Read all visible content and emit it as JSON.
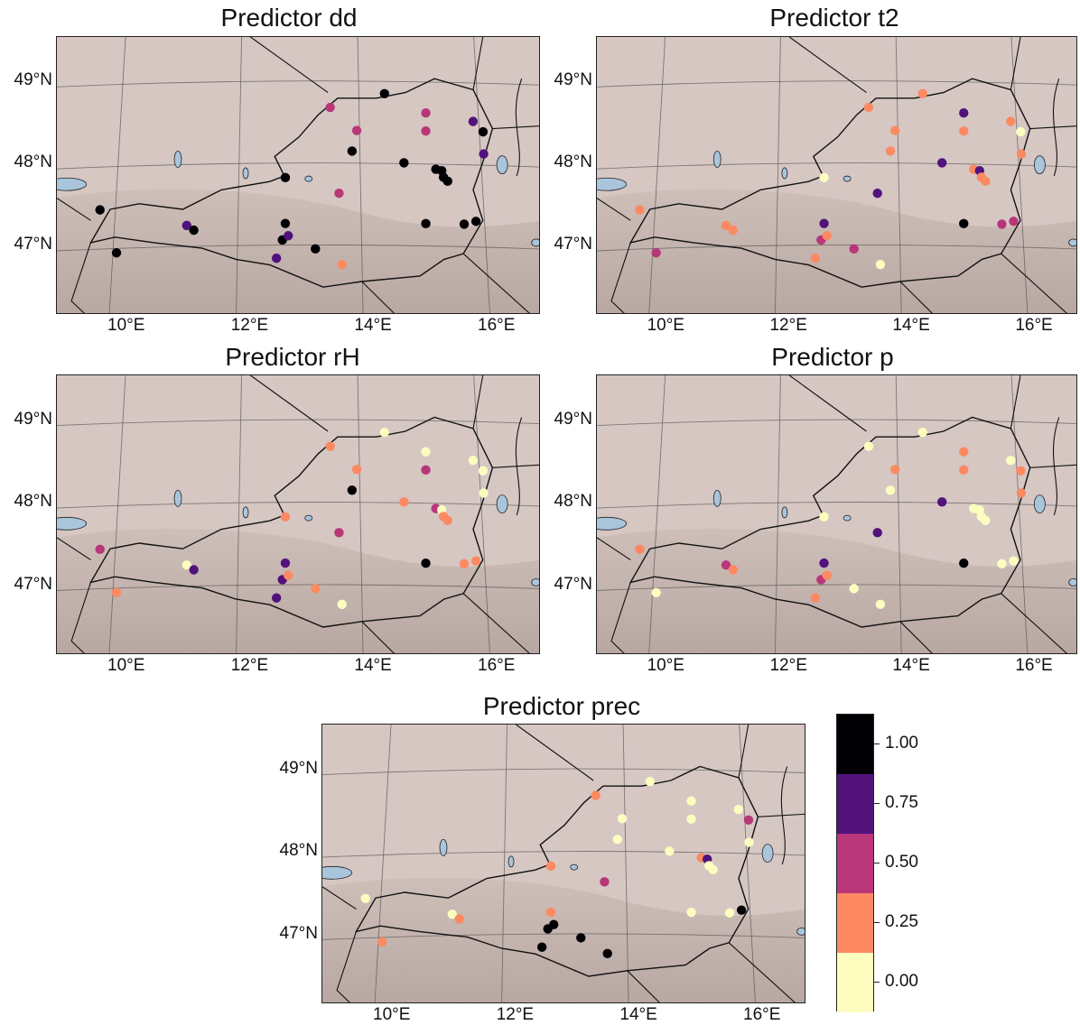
{
  "chart_data": [
    {
      "type": "scatter",
      "title": "Predictor dd",
      "xlabel": "",
      "ylabel": "",
      "xticks": [
        "10°E",
        "12°E",
        "14°E",
        "16°E"
      ],
      "yticks": [
        "49°N",
        "48°N",
        "47°N"
      ],
      "xlim": [
        8.9,
        17.2
      ],
      "ylim": [
        46.3,
        49.6
      ],
      "points": [
        {
          "lon": 9.73,
          "lat": 47.5,
          "value": 1.0
        },
        {
          "lon": 10.01,
          "lat": 46.97,
          "value": 1.0
        },
        {
          "lon": 11.2,
          "lat": 47.28,
          "value": 0.75
        },
        {
          "lon": 11.32,
          "lat": 47.22,
          "value": 1.0
        },
        {
          "lon": 12.72,
          "lat": 46.85,
          "value": 0.75
        },
        {
          "lon": 12.82,
          "lat": 47.07,
          "value": 1.0
        },
        {
          "lon": 12.87,
          "lat": 47.27,
          "value": 1.0
        },
        {
          "lon": 12.92,
          "lat": 47.12,
          "value": 0.75
        },
        {
          "lon": 12.87,
          "lat": 47.83,
          "value": 1.0
        },
        {
          "lon": 13.38,
          "lat": 46.95,
          "value": 1.0
        },
        {
          "lon": 13.63,
          "lat": 48.67,
          "value": 0.5
        },
        {
          "lon": 13.78,
          "lat": 47.62,
          "value": 0.5
        },
        {
          "lon": 13.83,
          "lat": 46.75,
          "value": 0.25
        },
        {
          "lon": 14.0,
          "lat": 48.13,
          "value": 1.0
        },
        {
          "lon": 14.08,
          "lat": 48.38,
          "value": 0.5
        },
        {
          "lon": 14.55,
          "lat": 48.82,
          "value": 1.0
        },
        {
          "lon": 14.88,
          "lat": 47.97,
          "value": 1.0
        },
        {
          "lon": 15.25,
          "lat": 48.57,
          "value": 0.5
        },
        {
          "lon": 15.25,
          "lat": 48.35,
          "value": 0.5
        },
        {
          "lon": 15.25,
          "lat": 47.22,
          "value": 1.0
        },
        {
          "lon": 15.42,
          "lat": 47.88,
          "value": 1.0
        },
        {
          "lon": 15.52,
          "lat": 47.86,
          "value": 1.0
        },
        {
          "lon": 15.55,
          "lat": 47.78,
          "value": 1.0
        },
        {
          "lon": 15.62,
          "lat": 47.73,
          "value": 1.0
        },
        {
          "lon": 15.9,
          "lat": 47.2,
          "value": 1.0
        },
        {
          "lon": 16.05,
          "lat": 48.45,
          "value": 0.75
        },
        {
          "lon": 16.1,
          "lat": 47.23,
          "value": 1.0
        },
        {
          "lon": 16.22,
          "lat": 48.32,
          "value": 1.0
        },
        {
          "lon": 16.23,
          "lat": 48.05,
          "value": 0.75
        }
      ]
    },
    {
      "type": "scatter",
      "title": "Predictor t2",
      "xlabel": "",
      "ylabel": "",
      "xticks": [
        "10°E",
        "12°E",
        "14°E",
        "16°E"
      ],
      "yticks": [
        "49°N",
        "48°N",
        "47°N"
      ],
      "xlim": [
        8.9,
        17.2
      ],
      "ylim": [
        46.3,
        49.6
      ],
      "points": [
        {
          "lon": 9.73,
          "lat": 47.5,
          "value": 0.25
        },
        {
          "lon": 10.01,
          "lat": 46.97,
          "value": 0.5
        },
        {
          "lon": 11.2,
          "lat": 47.28,
          "value": 0.25
        },
        {
          "lon": 11.32,
          "lat": 47.22,
          "value": 0.25
        },
        {
          "lon": 12.72,
          "lat": 46.85,
          "value": 0.25
        },
        {
          "lon": 12.82,
          "lat": 47.07,
          "value": 0.5
        },
        {
          "lon": 12.87,
          "lat": 47.27,
          "value": 0.75
        },
        {
          "lon": 12.92,
          "lat": 47.12,
          "value": 0.25
        },
        {
          "lon": 12.87,
          "lat": 47.83,
          "value": 0.0
        },
        {
          "lon": 13.38,
          "lat": 46.95,
          "value": 0.5
        },
        {
          "lon": 13.63,
          "lat": 48.67,
          "value": 0.25
        },
        {
          "lon": 13.78,
          "lat": 47.62,
          "value": 0.75
        },
        {
          "lon": 13.83,
          "lat": 46.75,
          "value": 0.0
        },
        {
          "lon": 14.0,
          "lat": 48.13,
          "value": 0.25
        },
        {
          "lon": 14.08,
          "lat": 48.38,
          "value": 0.25
        },
        {
          "lon": 14.55,
          "lat": 48.82,
          "value": 0.25
        },
        {
          "lon": 14.88,
          "lat": 47.97,
          "value": 0.75
        },
        {
          "lon": 15.25,
          "lat": 48.57,
          "value": 0.75
        },
        {
          "lon": 15.25,
          "lat": 48.35,
          "value": 0.25
        },
        {
          "lon": 15.25,
          "lat": 47.22,
          "value": 1.0
        },
        {
          "lon": 15.42,
          "lat": 47.88,
          "value": 0.25
        },
        {
          "lon": 15.52,
          "lat": 47.86,
          "value": 0.75
        },
        {
          "lon": 15.55,
          "lat": 47.78,
          "value": 0.25
        },
        {
          "lon": 15.62,
          "lat": 47.73,
          "value": 0.25
        },
        {
          "lon": 15.9,
          "lat": 47.2,
          "value": 0.5
        },
        {
          "lon": 16.05,
          "lat": 48.45,
          "value": 0.25
        },
        {
          "lon": 16.1,
          "lat": 47.23,
          "value": 0.5
        },
        {
          "lon": 16.22,
          "lat": 48.32,
          "value": 0.0
        },
        {
          "lon": 16.23,
          "lat": 48.05,
          "value": 0.25
        }
      ]
    },
    {
      "type": "scatter",
      "title": "Predictor rH",
      "xlabel": "",
      "ylabel": "",
      "xticks": [
        "10°E",
        "12°E",
        "14°E",
        "16°E"
      ],
      "yticks": [
        "49°N",
        "48°N",
        "47°N"
      ],
      "xlim": [
        8.9,
        17.2
      ],
      "ylim": [
        46.3,
        49.6
      ],
      "points": [
        {
          "lon": 9.73,
          "lat": 47.5,
          "value": 0.5
        },
        {
          "lon": 10.01,
          "lat": 46.97,
          "value": 0.25
        },
        {
          "lon": 11.2,
          "lat": 47.28,
          "value": 0.0
        },
        {
          "lon": 11.32,
          "lat": 47.22,
          "value": 0.75
        },
        {
          "lon": 12.72,
          "lat": 46.85,
          "value": 0.75
        },
        {
          "lon": 12.82,
          "lat": 47.07,
          "value": 0.75
        },
        {
          "lon": 12.87,
          "lat": 47.27,
          "value": 0.75
        },
        {
          "lon": 12.92,
          "lat": 47.12,
          "value": 0.25
        },
        {
          "lon": 12.87,
          "lat": 47.83,
          "value": 0.25
        },
        {
          "lon": 13.38,
          "lat": 46.95,
          "value": 0.25
        },
        {
          "lon": 13.63,
          "lat": 48.67,
          "value": 0.25
        },
        {
          "lon": 13.78,
          "lat": 47.62,
          "value": 0.5
        },
        {
          "lon": 13.83,
          "lat": 46.75,
          "value": 0.0
        },
        {
          "lon": 14.0,
          "lat": 48.13,
          "value": 1.0
        },
        {
          "lon": 14.08,
          "lat": 48.38,
          "value": 0.25
        },
        {
          "lon": 14.55,
          "lat": 48.82,
          "value": 0.0
        },
        {
          "lon": 14.88,
          "lat": 47.97,
          "value": 0.25
        },
        {
          "lon": 15.25,
          "lat": 48.57,
          "value": 0.0
        },
        {
          "lon": 15.25,
          "lat": 48.35,
          "value": 0.5
        },
        {
          "lon": 15.25,
          "lat": 47.22,
          "value": 1.0
        },
        {
          "lon": 15.42,
          "lat": 47.88,
          "value": 0.5
        },
        {
          "lon": 15.52,
          "lat": 47.86,
          "value": 0.0
        },
        {
          "lon": 15.55,
          "lat": 47.78,
          "value": 0.25
        },
        {
          "lon": 15.62,
          "lat": 47.73,
          "value": 0.25
        },
        {
          "lon": 15.9,
          "lat": 47.2,
          "value": 0.25
        },
        {
          "lon": 16.05,
          "lat": 48.45,
          "value": 0.0
        },
        {
          "lon": 16.1,
          "lat": 47.23,
          "value": 0.25
        },
        {
          "lon": 16.22,
          "lat": 48.32,
          "value": 0.0
        },
        {
          "lon": 16.23,
          "lat": 48.05,
          "value": 0.0
        }
      ]
    },
    {
      "type": "scatter",
      "title": "Predictor p",
      "xlabel": "",
      "ylabel": "",
      "xticks": [
        "10°E",
        "12°E",
        "14°E",
        "16°E"
      ],
      "yticks": [
        "49°N",
        "48°N",
        "47°N"
      ],
      "xlim": [
        8.9,
        17.2
      ],
      "ylim": [
        46.3,
        49.6
      ],
      "points": [
        {
          "lon": 9.73,
          "lat": 47.5,
          "value": 0.25
        },
        {
          "lon": 10.01,
          "lat": 46.97,
          "value": 0.0
        },
        {
          "lon": 11.2,
          "lat": 47.28,
          "value": 0.5
        },
        {
          "lon": 11.32,
          "lat": 47.22,
          "value": 0.25
        },
        {
          "lon": 12.72,
          "lat": 46.85,
          "value": 0.25
        },
        {
          "lon": 12.82,
          "lat": 47.07,
          "value": 0.5
        },
        {
          "lon": 12.87,
          "lat": 47.27,
          "value": 0.75
        },
        {
          "lon": 12.92,
          "lat": 47.12,
          "value": 0.25
        },
        {
          "lon": 12.87,
          "lat": 47.83,
          "value": 0.0
        },
        {
          "lon": 13.38,
          "lat": 46.95,
          "value": 0.0
        },
        {
          "lon": 13.63,
          "lat": 48.67,
          "value": 0.0
        },
        {
          "lon": 13.78,
          "lat": 47.62,
          "value": 0.75
        },
        {
          "lon": 13.83,
          "lat": 46.75,
          "value": 0.0
        },
        {
          "lon": 14.0,
          "lat": 48.13,
          "value": 0.0
        },
        {
          "lon": 14.08,
          "lat": 48.38,
          "value": 0.25
        },
        {
          "lon": 14.55,
          "lat": 48.82,
          "value": 0.0
        },
        {
          "lon": 14.88,
          "lat": 47.97,
          "value": 0.75
        },
        {
          "lon": 15.25,
          "lat": 48.57,
          "value": 0.25
        },
        {
          "lon": 15.25,
          "lat": 48.35,
          "value": 0.25
        },
        {
          "lon": 15.25,
          "lat": 47.22,
          "value": 1.0
        },
        {
          "lon": 15.42,
          "lat": 47.88,
          "value": 0.0
        },
        {
          "lon": 15.52,
          "lat": 47.86,
          "value": 0.0
        },
        {
          "lon": 15.55,
          "lat": 47.78,
          "value": 0.0
        },
        {
          "lon": 15.62,
          "lat": 47.73,
          "value": 0.0
        },
        {
          "lon": 15.9,
          "lat": 47.2,
          "value": 0.0
        },
        {
          "lon": 16.05,
          "lat": 48.45,
          "value": 0.0
        },
        {
          "lon": 16.1,
          "lat": 47.23,
          "value": 0.0
        },
        {
          "lon": 16.22,
          "lat": 48.32,
          "value": 0.25
        },
        {
          "lon": 16.23,
          "lat": 48.05,
          "value": 0.25
        }
      ]
    },
    {
      "type": "scatter",
      "title": "Predictor prec",
      "xlabel": "",
      "ylabel": "",
      "xticks": [
        "10°E",
        "12°E",
        "14°E",
        "16°E"
      ],
      "yticks": [
        "49°N",
        "48°N",
        "47°N"
      ],
      "xlim": [
        8.9,
        17.2
      ],
      "ylim": [
        46.3,
        49.6
      ],
      "points": [
        {
          "lon": 9.73,
          "lat": 47.5,
          "value": 0.0
        },
        {
          "lon": 10.01,
          "lat": 46.97,
          "value": 0.25
        },
        {
          "lon": 11.2,
          "lat": 47.28,
          "value": 0.0
        },
        {
          "lon": 11.32,
          "lat": 47.22,
          "value": 0.25
        },
        {
          "lon": 12.72,
          "lat": 46.85,
          "value": 1.0
        },
        {
          "lon": 12.82,
          "lat": 47.07,
          "value": 1.0
        },
        {
          "lon": 12.87,
          "lat": 47.27,
          "value": 0.25
        },
        {
          "lon": 12.92,
          "lat": 47.12,
          "value": 1.0
        },
        {
          "lon": 12.87,
          "lat": 47.83,
          "value": 0.25
        },
        {
          "lon": 13.38,
          "lat": 46.95,
          "value": 1.0
        },
        {
          "lon": 13.63,
          "lat": 48.67,
          "value": 0.25
        },
        {
          "lon": 13.78,
          "lat": 47.62,
          "value": 0.5
        },
        {
          "lon": 13.83,
          "lat": 46.75,
          "value": 1.0
        },
        {
          "lon": 14.0,
          "lat": 48.13,
          "value": 0.0
        },
        {
          "lon": 14.08,
          "lat": 48.38,
          "value": 0.0
        },
        {
          "lon": 14.55,
          "lat": 48.82,
          "value": 0.0
        },
        {
          "lon": 14.88,
          "lat": 47.97,
          "value": 0.0
        },
        {
          "lon": 15.25,
          "lat": 48.57,
          "value": 0.0
        },
        {
          "lon": 15.25,
          "lat": 48.35,
          "value": 0.0
        },
        {
          "lon": 15.25,
          "lat": 47.22,
          "value": 0.0
        },
        {
          "lon": 15.42,
          "lat": 47.88,
          "value": 0.25
        },
        {
          "lon": 15.52,
          "lat": 47.86,
          "value": 0.75
        },
        {
          "lon": 15.55,
          "lat": 47.78,
          "value": 0.0
        },
        {
          "lon": 15.62,
          "lat": 47.73,
          "value": 0.0
        },
        {
          "lon": 15.9,
          "lat": 47.2,
          "value": 0.0
        },
        {
          "lon": 16.05,
          "lat": 48.45,
          "value": 0.0
        },
        {
          "lon": 16.1,
          "lat": 47.23,
          "value": 1.0
        },
        {
          "lon": 16.22,
          "lat": 48.32,
          "value": 0.5
        },
        {
          "lon": 16.23,
          "lat": 48.05,
          "value": 0.0
        }
      ]
    }
  ],
  "colorbar": {
    "labels": [
      "1.00",
      "0.75",
      "0.50",
      "0.25",
      "0.00"
    ],
    "bins": [
      {
        "from": 0.875,
        "to": 1.125,
        "color": "#000004"
      },
      {
        "from": 0.625,
        "to": 0.875,
        "color": "#51127c"
      },
      {
        "from": 0.375,
        "to": 0.625,
        "color": "#b73779"
      },
      {
        "from": 0.125,
        "to": 0.375,
        "color": "#fc8961"
      },
      {
        "from": -0.125,
        "to": 0.125,
        "color": "#fcfdbf"
      }
    ]
  },
  "colors": {
    "map_background": "#d6c7c3",
    "water": "#a9c5dc",
    "border": "#1a1a1a"
  }
}
